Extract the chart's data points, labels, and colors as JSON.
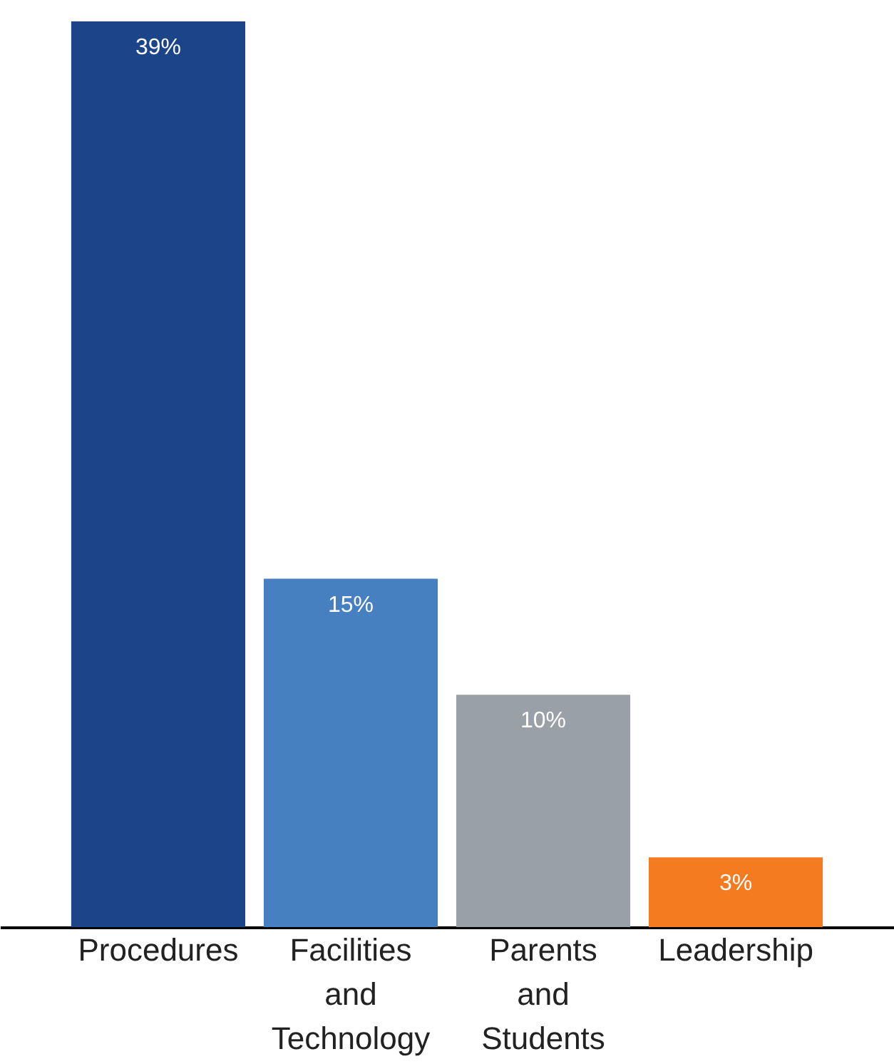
{
  "chart_data": {
    "type": "bar",
    "categories": [
      "Procedures",
      "Facilities and Technology",
      "Parents and Students",
      "Leadership"
    ],
    "values": [
      39,
      15,
      10,
      3
    ],
    "colors": [
      "#1b4588",
      "#4780c1",
      "#9aa0a8",
      "#f47b20"
    ],
    "value_labels": [
      "39%",
      "15%",
      "10%",
      "3%"
    ]
  }
}
